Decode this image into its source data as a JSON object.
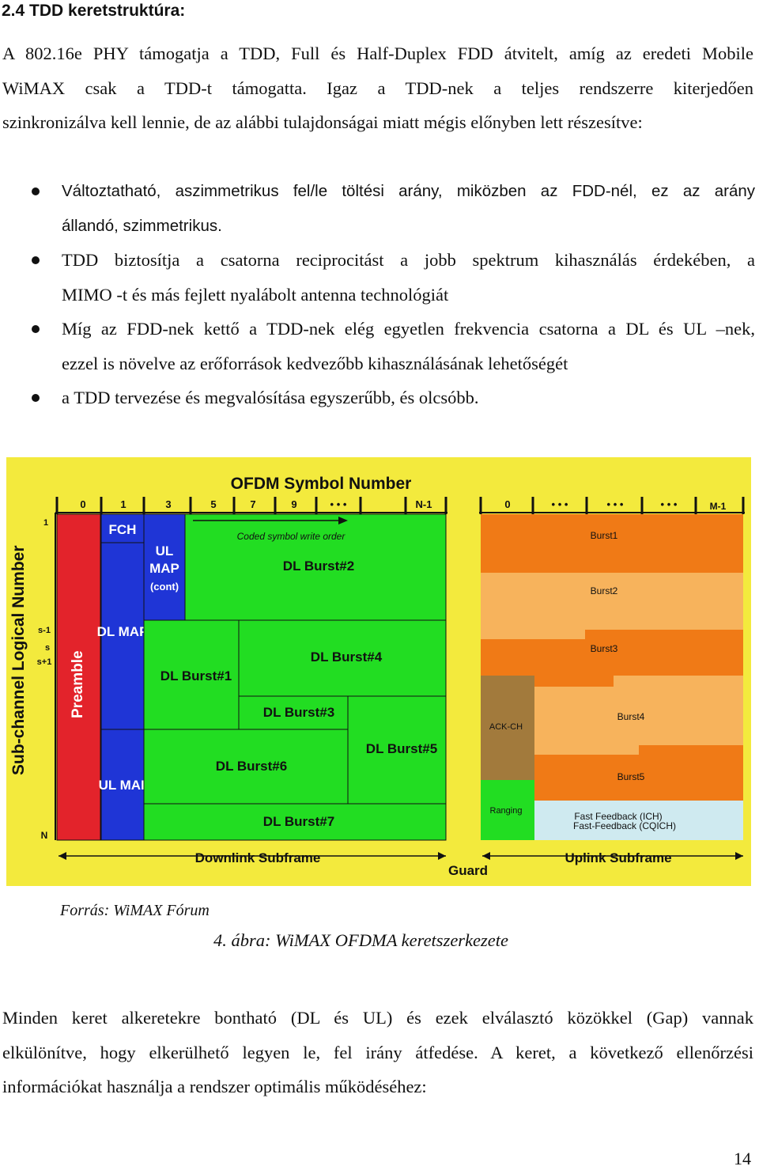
{
  "heading": "2.4 TDD keretstruktúra:",
  "intro_lines": [
    "A 802.16e PHY támogatja a TDD, Full és Half-Duplex FDD átvitelt, amíg az eredeti Mobile",
    "WiMAX csak a TDD-t támogatta. Igaz a TDD-nek a teljes rendszerre kiterjedően",
    "szinkronizálva kell lennie, de az alábbi tulajdonságai miatt mégis előnyben lett részesítve:"
  ],
  "bullets": [
    [
      "Változtatható, aszimmetrikus fel/le töltési arány, miközben az FDD-nél, ez az arány",
      "állandó, szimmetrikus."
    ],
    [
      "TDD biztosítja a csatorna reciprocitást a jobb spektrum kihasználás érdekében, a",
      "MIMO -t és más fejlett nyalábolt antenna technológiát"
    ],
    [
      "Míg az FDD-nek kettő a TDD-nek elég egyetlen frekvencia csatorna a DL és UL –nek,",
      "ezzel is növelve az erőforrások kedvezőbb kihasználásának lehetőségét"
    ],
    [
      "a TDD tervezése és megvalósítása egyszerűbb, és olcsóbb."
    ]
  ],
  "figure": {
    "title": "OFDM Symbol Number",
    "y_axis_label": "Sub-channel Logical Number",
    "dl_ticks": [
      "0",
      "1",
      "3",
      "5",
      "7",
      "9",
      "• • •",
      "N-1"
    ],
    "ul_ticks": [
      "0",
      "• • •",
      "• • •",
      "• • •",
      "M-1"
    ],
    "y_ticks": [
      "1",
      "s-1",
      "s",
      "s+1",
      "N"
    ],
    "blocks": {
      "preamble": "Preamble",
      "fch": "FCH",
      "dl_map": "DL MAP",
      "ul_map": "UL MAP",
      "ul_map_cont": [
        "UL",
        "MAP",
        "(cont)"
      ],
      "coded_order": "Coded symbol write order",
      "dl_burst2": "DL Burst#2",
      "dl_burst4": "DL Burst#4",
      "dl_burst1": "DL Burst#1",
      "dl_burst3": "DL Burst#3",
      "dl_burst5": "DL Burst#5",
      "dl_burst6": "DL Burst#6",
      "dl_burst7": "DL Burst#7",
      "burst1": "Burst1",
      "burst2": "Burst2",
      "burst3": "Burst3",
      "burst4": "Burst4",
      "burst5": "Burst5",
      "ack": "ACK-CH",
      "ranging": "Ranging",
      "fast_feedback": [
        "Fast Feedback (ICH)",
        "Fast-Feedback (CQICH)"
      ]
    },
    "downlink_label": "Downlink Subframe",
    "uplink_label": "Uplink Subframe",
    "guard_label": "Guard",
    "colors": {
      "background": "#f3ea3d",
      "preamble": "#e3232b",
      "map": "#1f35d6",
      "dl_burst": "#22dd22",
      "ul_dark": "#f07a16",
      "ul_light": "#f7b35c",
      "ack": "#a27a3c",
      "feedback": "#cfeaf0"
    }
  },
  "source": "Forrás: WiMAX Fórum",
  "caption": "4. ábra: WiMAX OFDMA keretszerkezete",
  "outro_lines": [
    "Minden keret alkeretekre bontható (DL és UL) és ezek elválasztó közökkel (Gap) vannak",
    "elkülönítve, hogy elkerülhető legyen le, fel irány átfedése. A keret, a következő ellenőrzési",
    "információkat használja a rendszer optimális működéséhez:"
  ],
  "page_number": "14"
}
